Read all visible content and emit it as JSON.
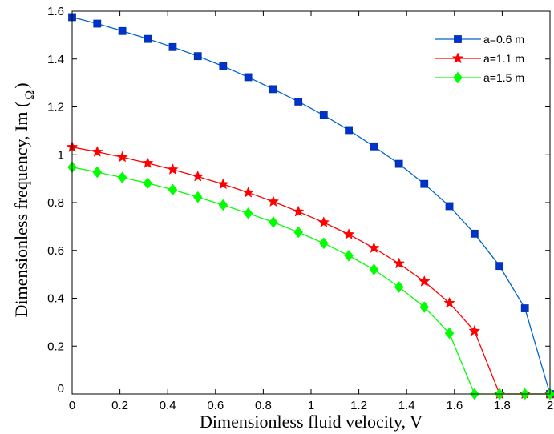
{
  "chart_data": {
    "type": "line",
    "xlabel": "Dimensionless fluid velocity, V",
    "ylabel_main": "Dimensionless frequency, Im (",
    "ylabel_symbol": "Ω",
    "ylabel_close": ")",
    "xlim": [
      0,
      2
    ],
    "ylim": [
      0,
      1.6
    ],
    "x_ticks": [
      "0",
      "0.2",
      "0.4",
      "0.6",
      "0.8",
      "1",
      "1.2",
      "1.4",
      "1.6",
      "1.8",
      "2"
    ],
    "y_ticks": [
      "0",
      "0.2",
      "0.4",
      "0.6",
      "0.8",
      "1",
      "1.2",
      "1.4",
      "1.6"
    ],
    "grid": false,
    "legend_position": "top-right",
    "x": [
      0,
      0.105,
      0.21,
      0.316,
      0.421,
      0.526,
      0.632,
      0.737,
      0.842,
      0.947,
      1.053,
      1.158,
      1.263,
      1.368,
      1.474,
      1.579,
      1.684,
      1.789,
      1.895,
      2.0
    ],
    "series": [
      {
        "name": "a=0.6 m",
        "color": "#0066cc",
        "marker_color": "#0033cc",
        "marker": "square",
        "values": [
          1.575,
          1.548,
          1.517,
          1.484,
          1.45,
          1.412,
          1.37,
          1.324,
          1.274,
          1.222,
          1.165,
          1.103,
          1.035,
          0.962,
          0.878,
          0.785,
          0.67,
          0.535,
          0.358,
          0
        ]
      },
      {
        "name": "a=1.1 m",
        "color": "#ff0000",
        "marker_color": "#ff0000",
        "marker": "star",
        "values": [
          1.032,
          1.012,
          0.99,
          0.965,
          0.938,
          0.909,
          0.877,
          0.842,
          0.804,
          0.762,
          0.717,
          0.667,
          0.61,
          0.545,
          0.47,
          0.38,
          0.263,
          0,
          0,
          0
        ]
      },
      {
        "name": "a=1.5 m",
        "color": "#00ff00",
        "marker_color": "#00ff00",
        "marker": "diamond",
        "values": [
          0.948,
          0.927,
          0.905,
          0.881,
          0.854,
          0.823,
          0.79,
          0.755,
          0.718,
          0.676,
          0.63,
          0.578,
          0.52,
          0.447,
          0.363,
          0.254,
          0,
          0,
          0,
          0
        ]
      }
    ]
  }
}
